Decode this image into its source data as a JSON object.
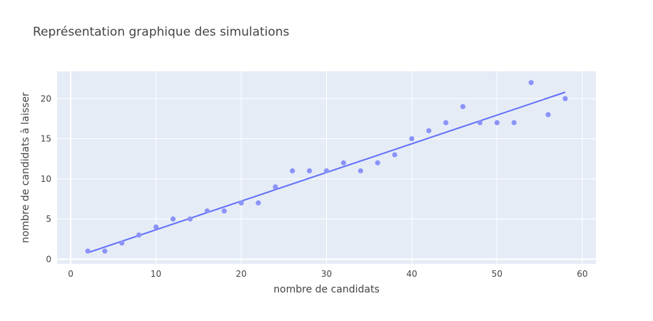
{
  "chart_data": {
    "type": "scatter",
    "title": "Représentation graphique des simulations",
    "xlabel": "nombre de candidats",
    "ylabel": "nombre de candidats à laisser",
    "xlim": [
      -1.6,
      61.6
    ],
    "ylim": [
      -0.6,
      23.4
    ],
    "xticks": [
      0,
      10,
      20,
      30,
      40,
      50,
      60
    ],
    "yticks": [
      0,
      5,
      10,
      15,
      20
    ],
    "grid": true,
    "legend": "none",
    "colors": {
      "points": "#8b93f8",
      "line": "#636efa",
      "plot_bg": "#e5ecf6",
      "grid": "#ffffff",
      "text": "#444444",
      "title": "#444444"
    },
    "series": [
      {
        "kind": "markers",
        "x": [
          2,
          4,
          6,
          8,
          10,
          12,
          14,
          16,
          18,
          20,
          22,
          24,
          26,
          28,
          30,
          32,
          34,
          36,
          38,
          40,
          42,
          44,
          46,
          48,
          50,
          52,
          54,
          56,
          58
        ],
        "y": [
          1,
          1,
          2,
          3,
          4,
          5,
          5,
          6,
          6,
          7,
          7,
          9,
          11,
          11,
          11,
          12,
          11,
          12,
          13,
          15,
          16,
          17,
          19,
          17,
          17,
          17,
          22,
          18,
          20
        ]
      },
      {
        "kind": "trendline",
        "x": [
          2,
          58
        ],
        "y": [
          0.8,
          20.8
        ]
      }
    ]
  }
}
